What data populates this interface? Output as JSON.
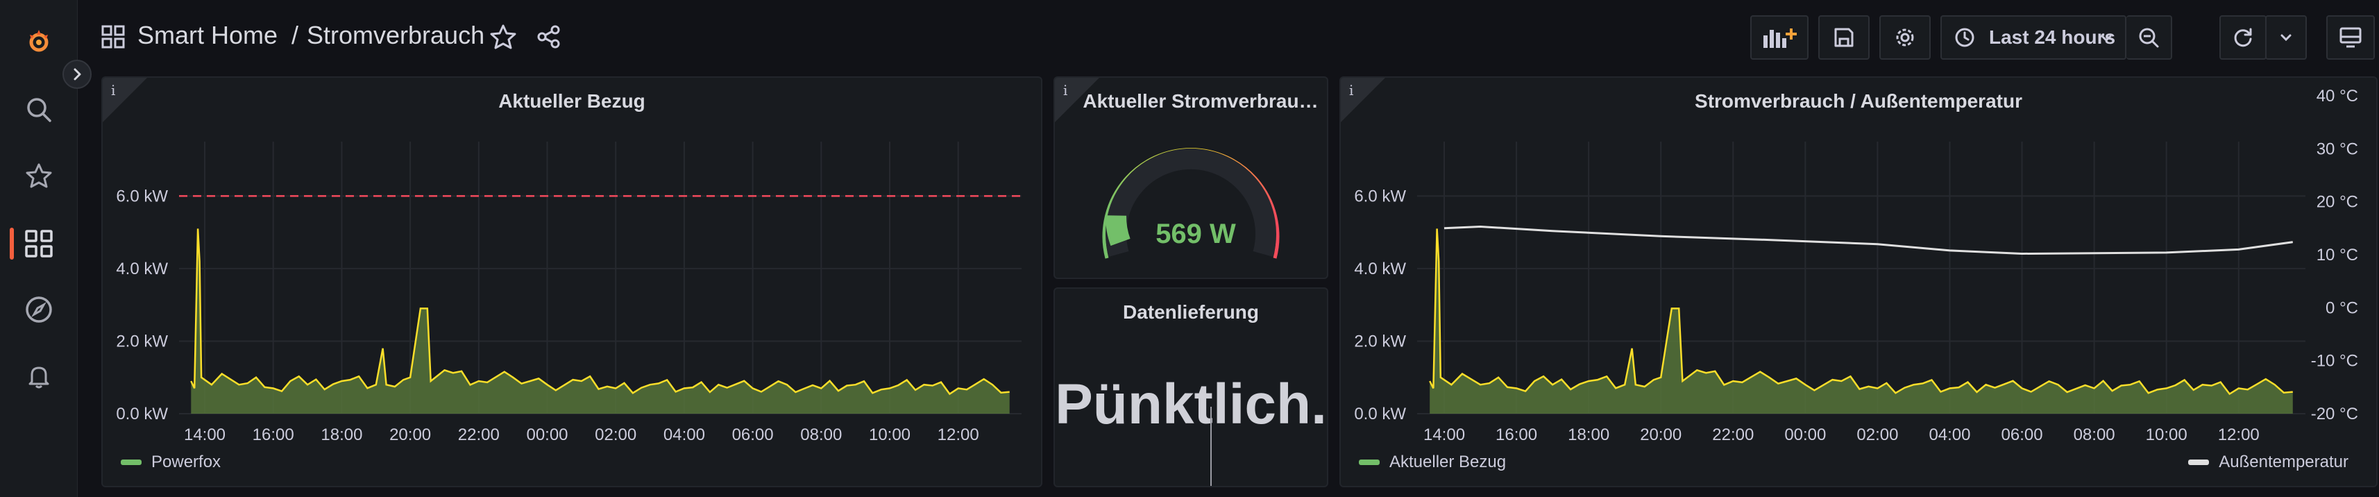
{
  "colors": {
    "accent": "#f55f3e",
    "series_power": "#fade2a",
    "series_fill": "#56733a",
    "threshold": "#f2495c",
    "gauge_value": "#73bf69",
    "temp_line": "#e0e0e0"
  },
  "sidebar": {
    "items": [
      {
        "icon": "grafana-logo-icon"
      },
      {
        "icon": "search-icon"
      },
      {
        "icon": "star-icon"
      },
      {
        "icon": "dashboards-icon",
        "active": true
      },
      {
        "icon": "explore-compass-icon"
      },
      {
        "icon": "alerting-bell-icon"
      }
    ]
  },
  "topbar": {
    "folder": "Smart Home",
    "separator": "/",
    "dashboard": "Stromverbrauch",
    "time_range": "Last 24 hours"
  },
  "panels": {
    "bezug": {
      "title": "Aktueller Bezug",
      "legend": "Powerfox"
    },
    "gauge": {
      "title": "Aktueller Stromverbrau…",
      "value_text": "569 W",
      "value": 569,
      "max": 6000
    },
    "lieferung": {
      "title": "Datenlieferung",
      "status": "Pünktlich."
    },
    "combined": {
      "title": "Stromverbrauch / Außentemperatur",
      "legend_left": "Aktueller Bezug",
      "legend_right": "Außentemperatur"
    }
  },
  "chart_data": [
    {
      "type": "area",
      "panel": "Aktueller Bezug",
      "x": [
        "14:00",
        "16:00",
        "18:00",
        "20:00",
        "22:00",
        "00:00",
        "02:00",
        "04:00",
        "06:00",
        "08:00",
        "10:00",
        "12:00"
      ],
      "y_ticks": [
        "0.0 kW",
        "2.0 kW",
        "4.0 kW",
        "6.0 kW"
      ],
      "ylim": [
        0,
        7.5
      ],
      "threshold": 6.0,
      "series": [
        {
          "name": "Powerfox",
          "points": [
            [
              -0.4,
              0.9
            ],
            [
              -0.3,
              0.7
            ],
            [
              -0.2,
              5.1
            ],
            [
              -0.15,
              4.2
            ],
            [
              -0.1,
              1.0
            ],
            [
              0.2,
              0.8
            ],
            [
              0.5,
              1.1
            ],
            [
              1.0,
              0.8
            ],
            [
              1.5,
              1.0
            ],
            [
              2.0,
              0.7
            ],
            [
              2.5,
              0.9
            ],
            [
              3.0,
              0.8
            ],
            [
              4.0,
              0.9
            ],
            [
              5.0,
              0.8
            ],
            [
              5.2,
              1.8
            ],
            [
              5.3,
              0.8
            ],
            [
              6.0,
              1.0
            ],
            [
              6.3,
              2.9
            ],
            [
              6.5,
              2.9
            ],
            [
              6.6,
              0.9
            ],
            [
              7.0,
              1.2
            ],
            [
              8.0,
              0.9
            ],
            [
              9.0,
              1.0
            ],
            [
              10.0,
              0.8
            ],
            [
              11.0,
              0.9
            ],
            [
              12.0,
              0.7
            ],
            [
              13.0,
              0.8
            ],
            [
              14.0,
              0.7
            ],
            [
              15.0,
              0.8
            ],
            [
              16.0,
              0.7
            ],
            [
              17.0,
              0.8
            ],
            [
              18.0,
              0.7
            ],
            [
              19.0,
              0.8
            ],
            [
              20.0,
              0.7
            ],
            [
              21.0,
              0.8
            ],
            [
              22.0,
              0.7
            ],
            [
              23.0,
              0.8
            ],
            [
              23.5,
              0.6
            ]
          ]
        }
      ]
    },
    {
      "type": "line",
      "panel": "Stromverbrauch / Außentemperatur",
      "x": [
        "14:00",
        "16:00",
        "18:00",
        "20:00",
        "22:00",
        "00:00",
        "02:00",
        "04:00",
        "06:00",
        "08:00",
        "10:00",
        "12:00"
      ],
      "y_ticks_left": [
        "0.0 kW",
        "2.0 kW",
        "4.0 kW",
        "6.0 kW"
      ],
      "y_ticks_right": [
        "-20 °C",
        "-10 °C",
        "0 °C",
        "10 °C",
        "20 °C",
        "30 °C",
        "40 °C"
      ],
      "ylim_left": [
        0,
        7.5
      ],
      "ylim_right": [
        -20,
        40
      ],
      "series": [
        {
          "name": "Aktueller Bezug",
          "axis": "left",
          "points": [
            [
              -0.4,
              0.9
            ],
            [
              -0.3,
              0.7
            ],
            [
              -0.2,
              5.1
            ],
            [
              -0.15,
              4.2
            ],
            [
              -0.1,
              1.0
            ],
            [
              0.2,
              0.8
            ],
            [
              0.5,
              1.1
            ],
            [
              1.0,
              0.8
            ],
            [
              1.5,
              1.0
            ],
            [
              2.0,
              0.7
            ],
            [
              2.5,
              0.9
            ],
            [
              3.0,
              0.8
            ],
            [
              4.0,
              0.9
            ],
            [
              5.0,
              0.8
            ],
            [
              5.2,
              1.8
            ],
            [
              5.3,
              0.8
            ],
            [
              6.0,
              1.0
            ],
            [
              6.3,
              2.9
            ],
            [
              6.5,
              2.9
            ],
            [
              6.6,
              0.9
            ],
            [
              7.0,
              1.2
            ],
            [
              8.0,
              0.9
            ],
            [
              9.0,
              1.0
            ],
            [
              10.0,
              0.8
            ],
            [
              11.0,
              0.9
            ],
            [
              12.0,
              0.7
            ],
            [
              13.0,
              0.8
            ],
            [
              14.0,
              0.7
            ],
            [
              15.0,
              0.8
            ],
            [
              16.0,
              0.7
            ],
            [
              17.0,
              0.8
            ],
            [
              18.0,
              0.7
            ],
            [
              19.0,
              0.8
            ],
            [
              20.0,
              0.7
            ],
            [
              21.0,
              0.8
            ],
            [
              22.0,
              0.7
            ],
            [
              23.0,
              0.8
            ],
            [
              23.5,
              0.6
            ]
          ]
        },
        {
          "name": "Außentemperatur",
          "axis": "right",
          "points": [
            [
              0,
              15
            ],
            [
              1,
              15.3
            ],
            [
              3,
              14.5
            ],
            [
              6,
              13.5
            ],
            [
              9,
              12.8
            ],
            [
              12,
              12
            ],
            [
              14,
              10.8
            ],
            [
              16,
              10.2
            ],
            [
              18,
              10.3
            ],
            [
              20,
              10.4
            ],
            [
              22,
              11
            ],
            [
              23.5,
              12.4
            ]
          ]
        }
      ]
    }
  ]
}
